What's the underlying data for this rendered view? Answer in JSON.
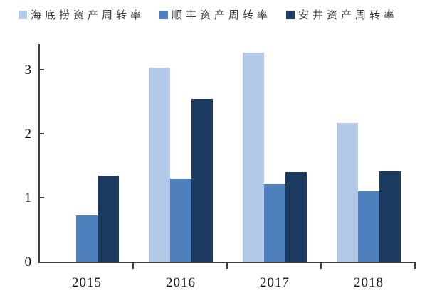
{
  "chart_data": {
    "type": "bar",
    "title": "",
    "xlabel": "",
    "ylabel": "",
    "categories": [
      "2015",
      "2016",
      "2017",
      "2018"
    ],
    "series": [
      {
        "name": "海底捞资产周转率",
        "color": "#b1c9e7",
        "values": [
          null,
          3.03,
          3.27,
          2.17
        ]
      },
      {
        "name": "顺丰资产周转率",
        "color": "#4e80be",
        "values": [
          0.72,
          1.3,
          1.21,
          1.1
        ]
      },
      {
        "name": "安井资产周转率",
        "color": "#1c3a60",
        "values": [
          1.34,
          2.55,
          1.4,
          1.41
        ]
      }
    ],
    "yticks": [
      0,
      1,
      2,
      3
    ],
    "ylim": [
      0,
      3.4
    ],
    "grid": false,
    "legend_position": "top",
    "axis_color": "#3f3f3f",
    "label_color": "#141414",
    "legend_text_color": "#3a3a3a",
    "background": "#ffffff"
  }
}
